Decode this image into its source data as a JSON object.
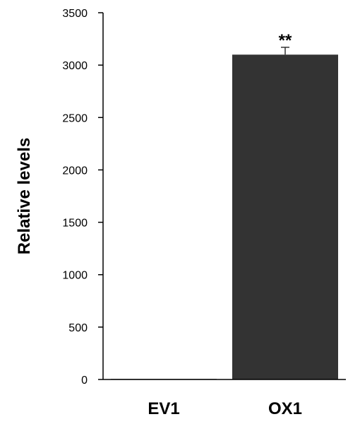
{
  "chart_data": {
    "type": "bar",
    "ylabel": "Relative levels",
    "ylim": [
      0,
      3500
    ],
    "yticks": [
      0,
      500,
      1000,
      1500,
      2000,
      2500,
      3000,
      3500
    ],
    "grid": false,
    "categories": [
      "EV1",
      "OX1"
    ],
    "series": [
      {
        "values": [
          1,
          3100
        ],
        "errors": [
          1,
          70
        ],
        "annotations": [
          "",
          "**"
        ]
      }
    ],
    "colors": {
      "bar": "#333333",
      "axis": "#000000"
    }
  }
}
